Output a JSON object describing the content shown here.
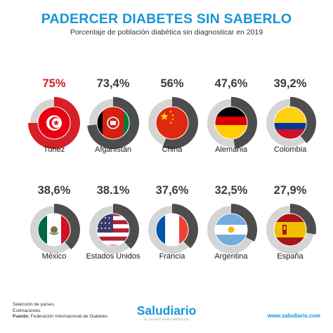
{
  "header": {
    "title": "PADERCER DIABETES SIN SABERLO",
    "subtitle": "Porcentaje de población diabética sin diagnosticar en 2019"
  },
  "colors": {
    "accent": "#1596d6",
    "highlight": "#d42027",
    "ring_dark": "#4d4d4d",
    "ring_light": "#d4d4d4"
  },
  "chart_data": {
    "type": "donut",
    "categories": [
      "Túnez",
      "Afganistán",
      "China",
      "Alemania",
      "Colombia",
      "México",
      "Estados Unidos",
      "Francia",
      "Argentina",
      "España"
    ],
    "value_labels": [
      "75%",
      "73,4%",
      "56%",
      "47,6%",
      "39,2%",
      "38,6%",
      "38.1%",
      "37,6%",
      "32,5%",
      "27,9%"
    ],
    "values": [
      75,
      73.4,
      56,
      47.6,
      39.2,
      38.6,
      38.1,
      37.6,
      32.5,
      27.9
    ],
    "flag_icons": [
      "tunisia-flag-icon",
      "afghanistan-flag-icon",
      "china-flag-icon",
      "germany-flag-icon",
      "colombia-flag-icon",
      "mexico-flag-icon",
      "usa-flag-icon",
      "france-flag-icon",
      "argentina-flag-icon",
      "spain-flag-icon"
    ],
    "highlight_series_color": "#d42027",
    "series_color": "#4d4d4d",
    "remainder_color": "#d4d4d4"
  },
  "footer": {
    "note1": "Selección de países",
    "note2": "Estimaciones.",
    "source_label": "Fuente:",
    "source": "Federación Internacional de Diabetes",
    "brand": "Saludiario",
    "brand_tagline": "EL DIARIO PARA MÉDICOS",
    "website": "www.saludiario.com"
  }
}
